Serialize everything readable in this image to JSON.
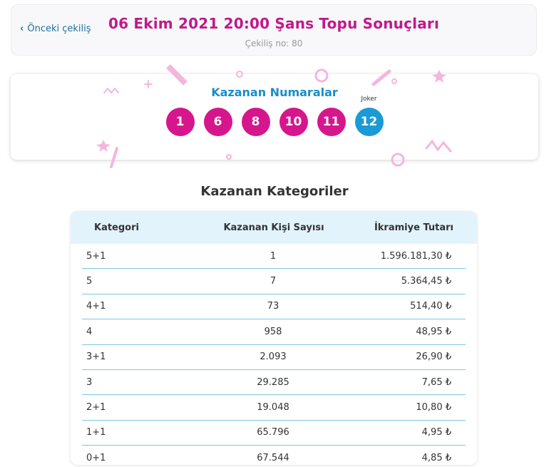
{
  "header": {
    "back_label": "Önceki çekiliş",
    "title": "06 Ekim 2021 20:00 Şans Topu Sonuçları",
    "draw_no": "Çekiliş no: 80"
  },
  "numbers": {
    "heading": "Kazanan Numaralar",
    "balls": [
      "1",
      "6",
      "8",
      "10",
      "11"
    ],
    "joker_label": "Joker",
    "joker": "12"
  },
  "categories": {
    "heading": "Kazanan Kategoriler",
    "columns": [
      "Kategori",
      "Kazanan Kişi Sayısı",
      "İkramiye Tutarı"
    ],
    "rows": [
      [
        "5+1",
        "1",
        "1.596.181,30 ₺"
      ],
      [
        "5",
        "7",
        "5.364,45 ₺"
      ],
      [
        "4+1",
        "73",
        "514,40 ₺"
      ],
      [
        "4",
        "958",
        "48,95 ₺"
      ],
      [
        "3+1",
        "2.093",
        "26,90 ₺"
      ],
      [
        "3",
        "29.285",
        "7,65 ₺"
      ],
      [
        "2+1",
        "19.048",
        "10,80 ₺"
      ],
      [
        "1+1",
        "65.796",
        "4,95 ₺"
      ],
      [
        "0+1",
        "67.544",
        "4,85 ₺"
      ]
    ]
  },
  "colors": {
    "accent_pink": "#c2188b",
    "ball_pink": "#d6168c",
    "joker_blue": "#1a9ad6",
    "heading_blue": "#1a8ec6",
    "confetti_pink": "#f4b6dc"
  }
}
